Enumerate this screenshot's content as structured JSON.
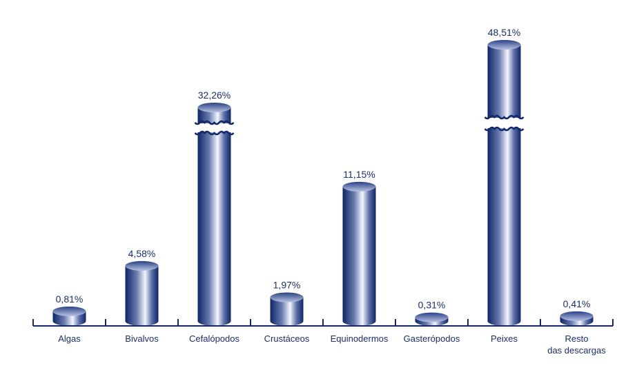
{
  "chart_data": {
    "type": "bar",
    "style": "3d-cylinder",
    "categories": [
      "Algas",
      "Bivalvos",
      "Cefalópodos",
      "Crustáceos",
      "Equinodermos",
      "Gasterópodos",
      "Peixes",
      "Resto das descargas"
    ],
    "category_lines": [
      [
        "Algas"
      ],
      [
        "Bivalvos"
      ],
      [
        "Cefalópodos"
      ],
      [
        "Crustáceos"
      ],
      [
        "Equinodermos"
      ],
      [
        "Gasterópodos"
      ],
      [
        "Peixes"
      ],
      [
        "Resto",
        "das descargas"
      ]
    ],
    "values": [
      0.81,
      4.58,
      32.26,
      1.97,
      11.15,
      0.31,
      48.51,
      0.41
    ],
    "data_labels": [
      "0,81%",
      "4,58%",
      "32,26%",
      "1,97%",
      "11,15%",
      "0,31%",
      "48,51%",
      "0,41%"
    ],
    "broken_bars": [
      "Cefalópodos",
      "Peixes"
    ],
    "unit": "%",
    "grid": false,
    "legend": "none",
    "colors": {
      "bar_dark": "#0e2566",
      "bar_light": "#f4f6ff",
      "text": "#1b2d6b",
      "axis": "#13286a"
    }
  }
}
